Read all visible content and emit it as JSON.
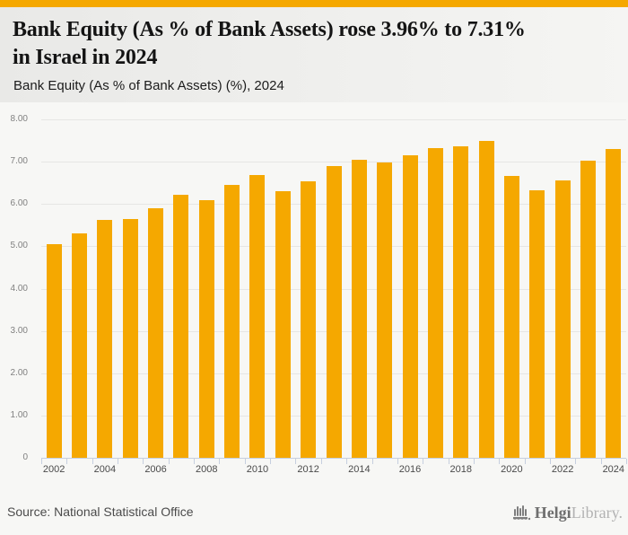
{
  "page": {
    "background": "#f7f7f5",
    "accent_bar_color": "#F5A800"
  },
  "header": {
    "title": "Bank Equity (As % of Bank Assets) rose 3.96% to 7.31% in Israel in 2024",
    "title_lines": [
      "Bank Equity (As % of Bank Assets) rose 3.96% to 7.31%",
      "in Israel in 2024"
    ],
    "subtitle": "Bank Equity (As % of Bank Assets) (%), 2024"
  },
  "chart_data": {
    "type": "bar",
    "title": "Bank Equity (As % of Bank Assets) (%), 2024",
    "categories": [
      "2002",
      "2003",
      "2004",
      "2005",
      "2006",
      "2007",
      "2008",
      "2009",
      "2010",
      "2011",
      "2012",
      "2013",
      "2014",
      "2015",
      "2016",
      "2017",
      "2018",
      "2019",
      "2020",
      "2021",
      "2022",
      "2023",
      "2024"
    ],
    "values": [
      5.05,
      5.3,
      5.62,
      5.64,
      5.89,
      6.22,
      6.1,
      6.45,
      6.68,
      6.31,
      6.54,
      6.9,
      7.04,
      6.99,
      7.16,
      7.32,
      7.37,
      7.5,
      6.67,
      6.32,
      6.56,
      7.03,
      7.31
    ],
    "xlabel": "",
    "ylabel": "",
    "ylim": [
      0,
      8
    ],
    "ytick_labels": [
      "0",
      "1.00",
      "2.00",
      "3.00",
      "4.00",
      "5.00",
      "6.00",
      "7.00",
      "8.00"
    ],
    "xtick_label_interval": 2,
    "grid": true,
    "legend_position": "none",
    "bar_color": "#F5A800"
  },
  "footer": {
    "source": "Source: National Statistical Office",
    "logo_brand": "Helgi",
    "logo_suffix": "Library.",
    "logo_icon": "library-columns-icon"
  },
  "colors": {
    "bar": "#F5A800",
    "accent_bar": "#F5A800",
    "grid_line": "#e6e6e4",
    "axis_line": "#c6cfdf",
    "y_tick_label": "#808080",
    "x_tick_label": "#4a4a4a",
    "title_text": "#141414",
    "source_text": "#4b4b4b",
    "logo_brand": "#6f6f6f",
    "logo_suffix": "#b3b3b3"
  }
}
